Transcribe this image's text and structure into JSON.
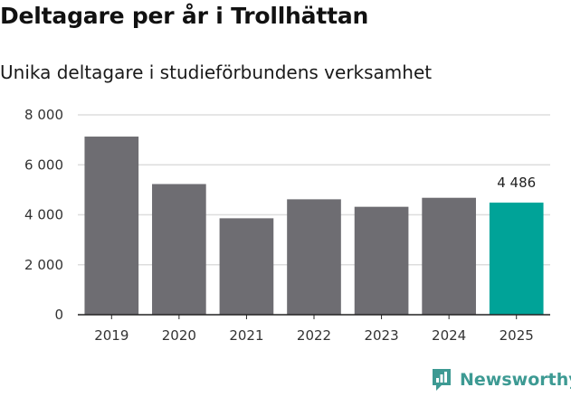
{
  "title": "Deltagare per år i Trollhättan",
  "subtitle": "Unika deltagare i studieförbundens verksamhet",
  "brand": {
    "name": "Newsworthy",
    "icon": "newsworthy-logo-icon",
    "color": "#3d9a93"
  },
  "colors": {
    "bar": "#6e6d72",
    "highlight": "#00a398",
    "grid": "#dddddd",
    "axis": "#222222"
  },
  "chart_data": {
    "type": "bar",
    "title": "Deltagare per år i Trollhättan",
    "subtitle": "Unika deltagare i studieförbundens verksamhet",
    "xlabel": "",
    "ylabel": "",
    "categories": [
      "2019",
      "2020",
      "2021",
      "2022",
      "2023",
      "2024",
      "2025"
    ],
    "values": [
      7130,
      5230,
      3860,
      4620,
      4320,
      4680,
      4486
    ],
    "highlight_index": 6,
    "data_labels": [
      {
        "index": 6,
        "text": "4 486"
      }
    ],
    "ylim": [
      0,
      8000
    ],
    "yticks": [
      0,
      2000,
      4000,
      6000,
      8000
    ],
    "ytick_labels": [
      "0",
      "2 000",
      "4 000",
      "6 000",
      "8 000"
    ],
    "grid": true,
    "legend": "none"
  }
}
